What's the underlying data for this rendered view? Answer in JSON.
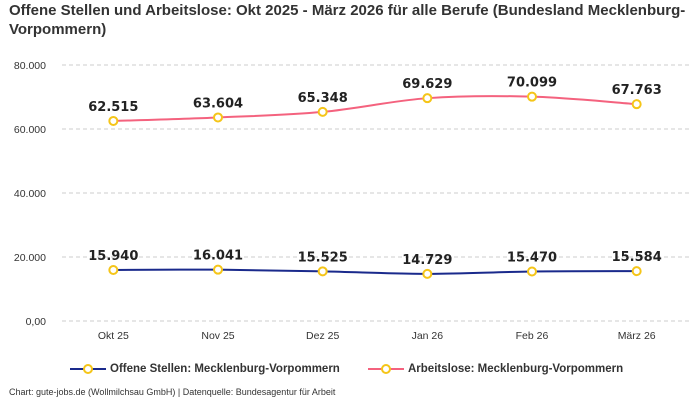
{
  "chart_data": {
    "type": "line",
    "title": "Offene Stellen und Arbeitslose: Okt 2025 - März 2026 für alle Berufe (Bundesland Mecklenburg-Vorpommern)",
    "categories": [
      "Okt 25",
      "Nov 25",
      "Dez 25",
      "Jan 26",
      "Feb 26",
      "März 26"
    ],
    "series": [
      {
        "name": "Offene Stellen: Mecklenburg-Vorpommern",
        "color": "#1a2a8c",
        "values": [
          15940,
          16041,
          15525,
          14729,
          15470,
          15584
        ],
        "labels": [
          "15.940",
          "16.041",
          "15.525",
          "14.729",
          "15.470",
          "15.584"
        ]
      },
      {
        "name": "Arbeitslose: Mecklenburg-Vorpommern",
        "color": "#f4627e",
        "values": [
          62515,
          63604,
          65348,
          69629,
          70099,
          67763
        ],
        "labels": [
          "62.515",
          "63.604",
          "65.348",
          "69.629",
          "70.099",
          "67.763"
        ]
      }
    ],
    "marker_color": "#f5c518",
    "ylim": [
      0,
      80000
    ],
    "yticks": [
      0,
      20000,
      40000,
      60000,
      80000
    ],
    "ytick_labels": [
      "0,00",
      "20.000",
      "40.000",
      "60.000",
      "80.000"
    ],
    "grid": true,
    "legend_position": "bottom"
  },
  "footer": "Chart: gute-jobs.de (Wollmilchsau GmbH) | Datenquelle: Bundesagentur für Arbeit"
}
